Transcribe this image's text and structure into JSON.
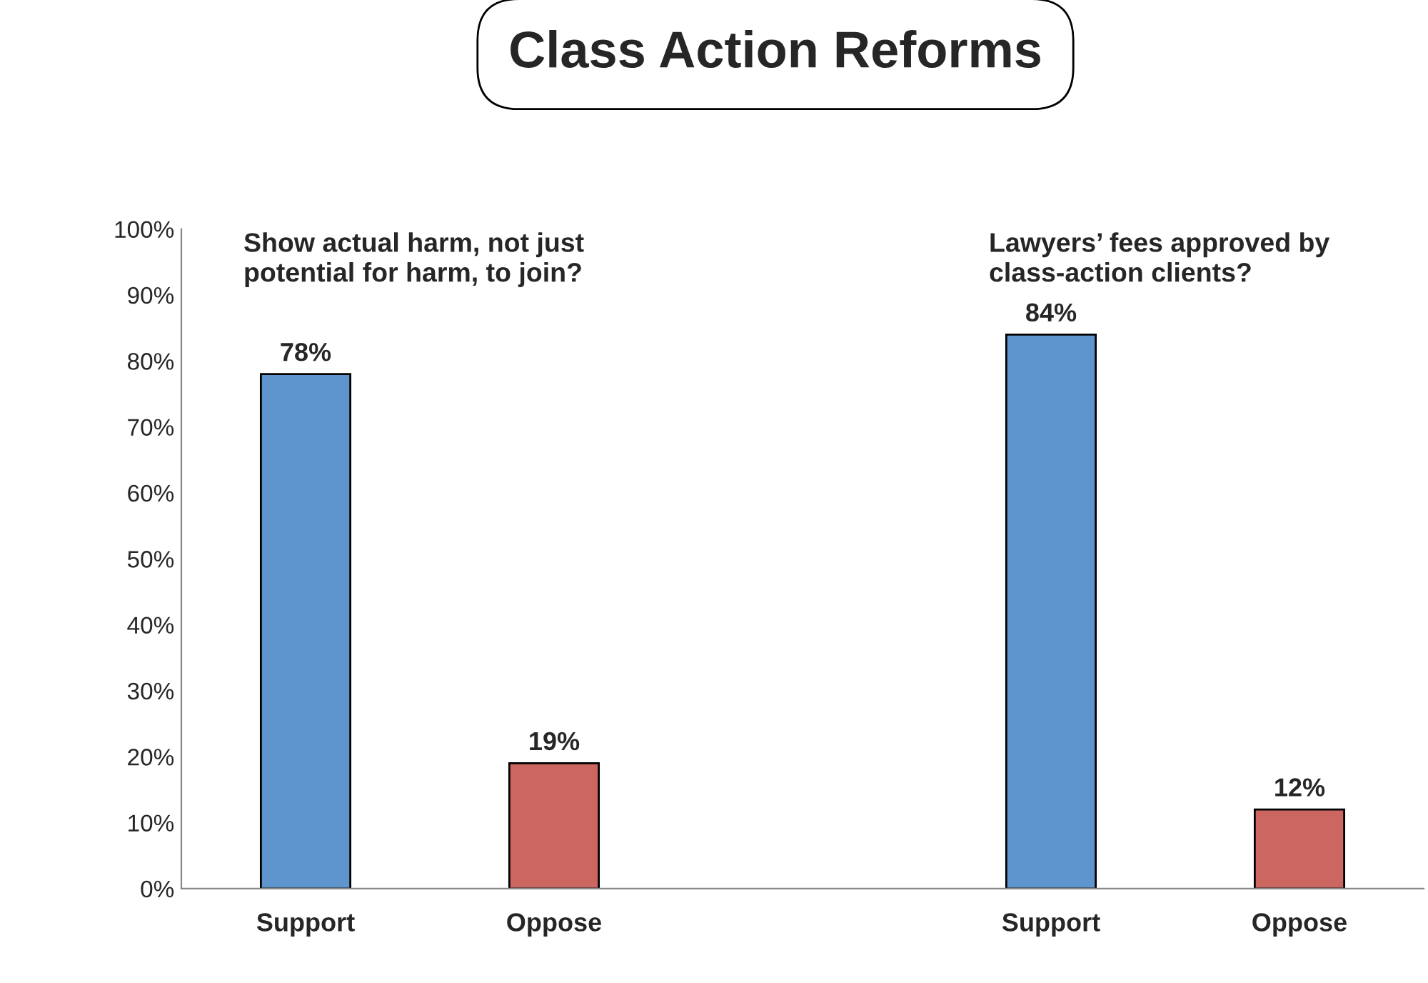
{
  "chart_data": {
    "type": "bar",
    "title": "Class Action Reforms",
    "categories": [
      "Support",
      "Oppose",
      null,
      "Support",
      "Oppose"
    ],
    "values": [
      78,
      19,
      null,
      84,
      12
    ],
    "colors": [
      "#5e95cd",
      "#cc6660",
      "#cc6660",
      "#5e95cd",
      "#cc6660"
    ],
    "value_labels": [
      "78%",
      "19%",
      null,
      "84%",
      "12%"
    ],
    "ylim": [
      0,
      100
    ],
    "yticks": [
      {
        "value": 0,
        "label": "0%"
      },
      {
        "value": 10,
        "label": "10%"
      },
      {
        "value": 20,
        "label": "20%"
      },
      {
        "value": 30,
        "label": "30%"
      },
      {
        "value": 40,
        "label": "40%"
      },
      {
        "value": 50,
        "label": "50%"
      },
      {
        "value": 60,
        "label": "60%"
      },
      {
        "value": 70,
        "label": "70%"
      },
      {
        "value": 80,
        "label": "80%"
      },
      {
        "value": 90,
        "label": "90%"
      },
      {
        "value": 100,
        "label": "100%"
      }
    ],
    "annotations": [
      "Show actual harm, not just\npotential for harm, to join?",
      "Lawyers’ fees approved by\nclass-action clients?"
    ],
    "grid": false,
    "legend": false
  }
}
